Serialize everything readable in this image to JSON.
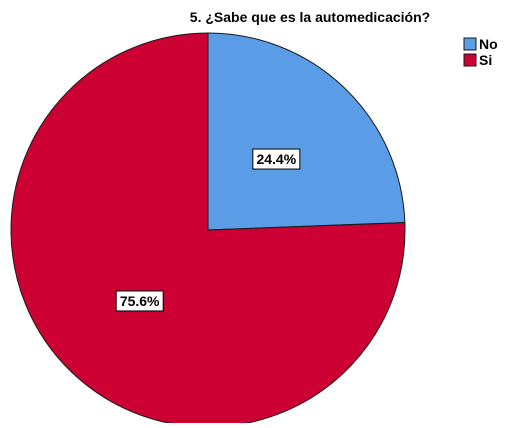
{
  "chart_data": {
    "type": "pie",
    "title": "5. ¿Sabe que es la automedicación?",
    "slices": [
      {
        "label": "No",
        "value": 24.4,
        "display": "24.4%",
        "color": "#5b9ce6"
      },
      {
        "label": "Si",
        "value": 75.6,
        "display": "75.6%",
        "color": "#cc0033"
      }
    ],
    "start_angle_deg": 0,
    "direction": "clockwise",
    "legend_position": "top-right"
  }
}
